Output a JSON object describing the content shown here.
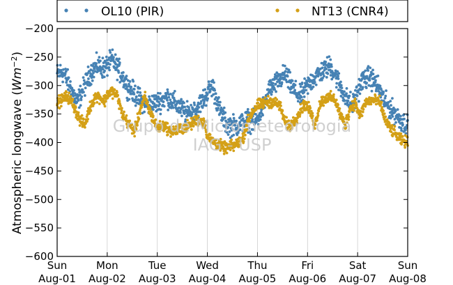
{
  "chart_data": {
    "type": "scatter",
    "ylabel": "Atmospheric longwave",
    "ylabel_unit_base": "Wm",
    "ylabel_unit_exp": "−2",
    "ylim": [
      -600,
      -200
    ],
    "yticks": [
      -200,
      -250,
      -300,
      -350,
      -400,
      -450,
      -500,
      -550,
      -600
    ],
    "ytick_labels": [
      "−200",
      "−250",
      "−300",
      "−350",
      "−400",
      "−450",
      "−500",
      "−550",
      "−600"
    ],
    "xlim": [
      0,
      7
    ],
    "xticks": [
      {
        "day": "Sun",
        "date": "Aug-01"
      },
      {
        "day": "Mon",
        "date": "Aug-02"
      },
      {
        "day": "Tue",
        "date": "Aug-03"
      },
      {
        "day": "Wed",
        "date": "Aug-04"
      },
      {
        "day": "Thu",
        "date": "Aug-05"
      },
      {
        "day": "Fri",
        "date": "Aug-06"
      },
      {
        "day": "Sat",
        "date": "Aug-07"
      },
      {
        "day": "Sun",
        "date": "Aug-08"
      }
    ],
    "grid": "vertical",
    "legend_position": "top",
    "series": [
      {
        "name": "OL10 (PIR)",
        "color": "#4682b4",
        "keypoints": [
          [
            0.0,
            -280
          ],
          [
            0.1,
            -275
          ],
          [
            0.2,
            -290
          ],
          [
            0.3,
            -310
          ],
          [
            0.4,
            -330
          ],
          [
            0.5,
            -310
          ],
          [
            0.65,
            -280
          ],
          [
            0.8,
            -265
          ],
          [
            0.95,
            -270
          ],
          [
            1.1,
            -255
          ],
          [
            1.25,
            -275
          ],
          [
            1.4,
            -300
          ],
          [
            1.6,
            -320
          ],
          [
            1.8,
            -335
          ],
          [
            2.0,
            -330
          ],
          [
            2.2,
            -320
          ],
          [
            2.4,
            -335
          ],
          [
            2.6,
            -350
          ],
          [
            2.8,
            -340
          ],
          [
            2.95,
            -320
          ],
          [
            3.1,
            -300
          ],
          [
            3.25,
            -345
          ],
          [
            3.4,
            -370
          ],
          [
            3.6,
            -370
          ],
          [
            3.8,
            -360
          ],
          [
            3.95,
            -365
          ],
          [
            4.05,
            -350
          ],
          [
            4.15,
            -330
          ],
          [
            4.25,
            -305
          ],
          [
            4.4,
            -295
          ],
          [
            4.55,
            -280
          ],
          [
            4.7,
            -305
          ],
          [
            4.85,
            -320
          ],
          [
            5.0,
            -300
          ],
          [
            5.15,
            -285
          ],
          [
            5.3,
            -275
          ],
          [
            5.45,
            -265
          ],
          [
            5.6,
            -290
          ],
          [
            5.75,
            -320
          ],
          [
            5.9,
            -335
          ],
          [
            6.0,
            -310
          ],
          [
            6.1,
            -290
          ],
          [
            6.25,
            -285
          ],
          [
            6.4,
            -300
          ],
          [
            6.55,
            -330
          ],
          [
            6.7,
            -345
          ],
          [
            6.85,
            -360
          ],
          [
            7.0,
            -370
          ]
        ],
        "spread": 15
      },
      {
        "name": "NT13 (CNR4)",
        "color": "#d4a017",
        "keypoints": [
          [
            0.0,
            -330
          ],
          [
            0.1,
            -325
          ],
          [
            0.2,
            -318
          ],
          [
            0.3,
            -330
          ],
          [
            0.45,
            -360
          ],
          [
            0.55,
            -370
          ],
          [
            0.65,
            -340
          ],
          [
            0.75,
            -320
          ],
          [
            0.85,
            -320
          ],
          [
            0.95,
            -328
          ],
          [
            1.0,
            -315
          ],
          [
            1.1,
            -310
          ],
          [
            1.2,
            -318
          ],
          [
            1.3,
            -350
          ],
          [
            1.45,
            -370
          ],
          [
            1.55,
            -380
          ],
          [
            1.65,
            -345
          ],
          [
            1.75,
            -320
          ],
          [
            1.85,
            -345
          ],
          [
            2.0,
            -375
          ],
          [
            2.15,
            -370
          ],
          [
            2.25,
            -380
          ],
          [
            2.35,
            -380
          ],
          [
            2.5,
            -375
          ],
          [
            2.65,
            -370
          ],
          [
            2.8,
            -360
          ],
          [
            2.95,
            -365
          ],
          [
            3.0,
            -390
          ],
          [
            3.15,
            -400
          ],
          [
            3.35,
            -410
          ],
          [
            3.55,
            -405
          ],
          [
            3.7,
            -395
          ],
          [
            3.8,
            -365
          ],
          [
            3.9,
            -345
          ],
          [
            4.0,
            -335
          ],
          [
            4.15,
            -330
          ],
          [
            4.3,
            -328
          ],
          [
            4.45,
            -335
          ],
          [
            4.55,
            -365
          ],
          [
            4.65,
            -372
          ],
          [
            4.75,
            -360
          ],
          [
            4.85,
            -345
          ],
          [
            4.95,
            -332
          ],
          [
            5.05,
            -345
          ],
          [
            5.15,
            -370
          ],
          [
            5.25,
            -330
          ],
          [
            5.4,
            -320
          ],
          [
            5.55,
            -325
          ],
          [
            5.65,
            -350
          ],
          [
            5.75,
            -370
          ],
          [
            5.85,
            -340
          ],
          [
            5.95,
            -330
          ],
          [
            6.05,
            -355
          ],
          [
            6.15,
            -330
          ],
          [
            6.3,
            -325
          ],
          [
            6.45,
            -330
          ],
          [
            6.55,
            -360
          ],
          [
            6.65,
            -375
          ],
          [
            6.75,
            -385
          ],
          [
            6.85,
            -395
          ],
          [
            7.0,
            -400
          ]
        ],
        "spread": 8
      }
    ]
  },
  "watermark": {
    "line1": "Grupo de Micrometeorologia",
    "line2": "IAG - USP"
  }
}
